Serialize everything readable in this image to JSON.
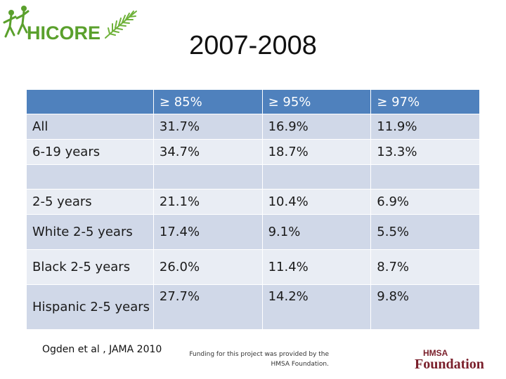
{
  "logo": {
    "text": "HICORE"
  },
  "title": "2007-2008",
  "table": {
    "header": [
      "",
      "≥ 85%",
      "≥ 95%",
      "≥ 97%"
    ],
    "rows": [
      [
        "All",
        "31.7%",
        "16.9%",
        "11.9%"
      ],
      [
        "6-19 years",
        "34.7%",
        "18.7%",
        "13.3%"
      ],
      [
        "",
        "",
        "",
        ""
      ],
      [
        "2-5 years",
        "21.1%",
        "10.4%",
        "6.9%"
      ],
      [
        "White 2-5 years",
        "17.4%",
        "9.1%",
        "5.5%"
      ],
      [
        "Black 2-5 years",
        "26.0%",
        "11.4%",
        "8.7%"
      ],
      [
        "Hispanic 2-5 years",
        "27.7%",
        "14.2%",
        "9.8%"
      ]
    ]
  },
  "citation": "Ogden et al , JAMA 2010",
  "funding": "Funding for this project was provided by the HMSA Foundation.",
  "hmsa_logo": {
    "small": "HMSA",
    "big": "Foundation"
  },
  "colors": {
    "header_bg": "#4f81bd",
    "row_odd": "#d0d8e8",
    "row_even": "#e9edf4",
    "logo_green": "#5aa02c",
    "hmsa_red": "#7a1f2b"
  }
}
